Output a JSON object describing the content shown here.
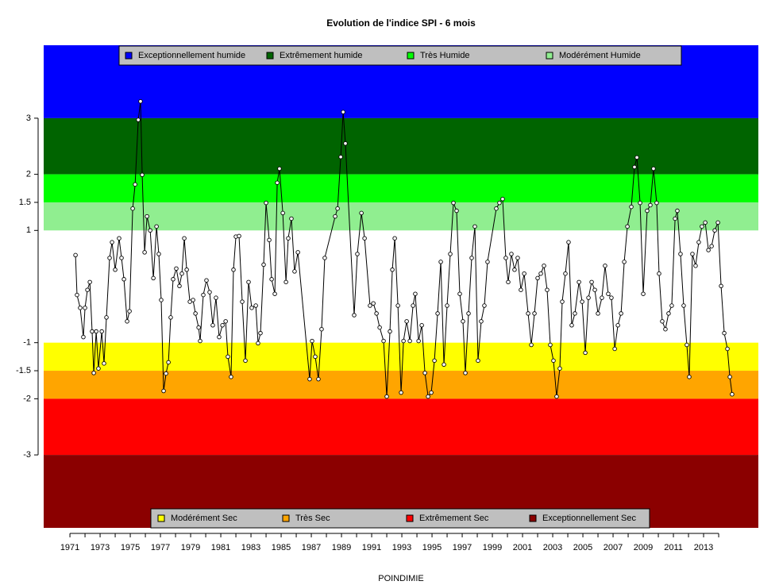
{
  "chart_data": {
    "type": "line",
    "title": "Evolution de l'indice SPI - 6 mois",
    "x_label": "POINDIMIE",
    "color": "#000000",
    "marker": "open-circle",
    "bands": [
      {
        "name": "Exceptionnellement humide",
        "color": "#0000FF",
        "range": [
          3,
          4.3
        ],
        "legend": "top"
      },
      {
        "name": "Extrêmement humide",
        "color": "#006400",
        "range": [
          2,
          3
        ],
        "legend": "top"
      },
      {
        "name": "Très Humide",
        "color": "#00FF00",
        "range": [
          1.5,
          2
        ],
        "legend": "top"
      },
      {
        "name": "Modérément Humide",
        "color": "#90EE90",
        "range": [
          1,
          1.5
        ],
        "legend": "top"
      },
      {
        "name": "Modérément Sec",
        "color": "#FFFF00",
        "range": [
          -1.5,
          -1
        ],
        "legend": "bottom"
      },
      {
        "name": "Très Sec",
        "color": "#FFA500",
        "range": [
          -2,
          -1.5
        ],
        "legend": "bottom"
      },
      {
        "name": "Extrêmement Sec",
        "color": "#FF0000",
        "range": [
          -3,
          -2
        ],
        "legend": "bottom"
      },
      {
        "name": "Exceptionnellement Sec",
        "color": "#8B0000",
        "range": [
          -4.3,
          -3
        ],
        "legend": "bottom"
      }
    ],
    "xlim": [
      1969.26,
      2016.63
    ],
    "ylim": [
      -4.3,
      4.3
    ],
    "xticks": [
      1971,
      1973,
      1975,
      1977,
      1979,
      1981,
      1983,
      1985,
      1987,
      1989,
      1991,
      1993,
      1995,
      1997,
      1999,
      2001,
      2003,
      2005,
      2007,
      2009,
      2011,
      2013
    ],
    "xminorticks": [
      1972,
      1974,
      1976,
      1978,
      1980,
      1982,
      1984,
      1986,
      1988,
      1990,
      1992,
      1994,
      1996,
      1998,
      2000,
      2002,
      2004,
      2006,
      2008,
      2010,
      2012,
      2014
    ],
    "yticks": [
      -3,
      -2,
      -1.5,
      -1,
      1,
      1.5,
      2,
      3
    ],
    "x": [
      1971.37,
      1971.47,
      1971.68,
      1971.89,
      1972.0,
      1972.16,
      1972.32,
      1972.47,
      1972.58,
      1972.74,
      1972.89,
      1973.11,
      1973.26,
      1973.42,
      1973.63,
      1973.79,
      1974.0,
      1974.26,
      1974.42,
      1974.58,
      1974.79,
      1974.95,
      1975.16,
      1975.32,
      1975.53,
      1975.68,
      1975.79,
      1975.95,
      1976.11,
      1976.32,
      1976.53,
      1976.74,
      1976.89,
      1977.05,
      1977.21,
      1977.37,
      1977.53,
      1977.68,
      1977.84,
      1978.05,
      1978.26,
      1978.42,
      1978.58,
      1978.74,
      1978.95,
      1979.16,
      1979.32,
      1979.53,
      1979.63,
      1979.84,
      1980.05,
      1980.26,
      1980.47,
      1980.68,
      1980.89,
      1981.11,
      1981.32,
      1981.47,
      1981.68,
      1981.84,
      1982.0,
      1982.21,
      1982.42,
      1982.63,
      1982.84,
      1983.05,
      1983.32,
      1983.47,
      1983.63,
      1983.84,
      1984.0,
      1984.21,
      1984.37,
      1984.58,
      1984.74,
      1984.89,
      1985.11,
      1985.32,
      1985.47,
      1985.68,
      1985.89,
      1986.11,
      1986.89,
      1987.05,
      1987.26,
      1987.47,
      1987.68,
      1987.89,
      1988.58,
      1988.74,
      1988.95,
      1989.11,
      1989.26,
      1989.84,
      1990.05,
      1990.32,
      1990.53,
      1990.89,
      1991.11,
      1991.32,
      1991.53,
      1991.79,
      1992.0,
      1992.21,
      1992.37,
      1992.53,
      1992.74,
      1992.95,
      1993.11,
      1993.32,
      1993.53,
      1993.74,
      1993.89,
      1994.11,
      1994.32,
      1994.53,
      1994.74,
      1994.95,
      1995.16,
      1995.37,
      1995.58,
      1995.79,
      1996.0,
      1996.21,
      1996.42,
      1996.63,
      1996.84,
      1997.05,
      1997.21,
      1997.42,
      1997.63,
      1997.84,
      1998.05,
      1998.26,
      1998.47,
      1998.68,
      1999.26,
      1999.47,
      1999.68,
      1999.89,
      2000.05,
      2000.26,
      2000.47,
      2000.68,
      2000.89,
      2001.11,
      2001.37,
      2001.58,
      2001.79,
      2002.0,
      2002.21,
      2002.42,
      2002.63,
      2002.84,
      2003.05,
      2003.26,
      2003.47,
      2003.63,
      2003.84,
      2004.05,
      2004.26,
      2004.47,
      2004.74,
      2004.95,
      2005.16,
      2005.37,
      2005.58,
      2005.79,
      2006.0,
      2006.26,
      2006.47,
      2006.68,
      2006.89,
      2007.11,
      2007.32,
      2007.53,
      2007.74,
      2007.95,
      2008.21,
      2008.42,
      2008.58,
      2008.79,
      2009.0,
      2009.26,
      2009.47,
      2009.68,
      2009.89,
      2010.05,
      2010.26,
      2010.47,
      2010.68,
      2010.89,
      2011.11,
      2011.26,
      2011.47,
      2011.68,
      2011.89,
      2012.05,
      2012.26,
      2012.47,
      2012.68,
      2012.89,
      2013.11,
      2013.32,
      2013.53,
      2013.74,
      2013.95,
      2014.16,
      2014.37,
      2014.58,
      2014.74,
      2014.89
    ],
    "values": [
      0.56,
      -0.15,
      -0.38,
      -0.9,
      -0.38,
      -0.06,
      0.08,
      -0.8,
      -1.54,
      -0.8,
      -1.46,
      -0.8,
      -1.37,
      -0.55,
      0.51,
      0.79,
      0.3,
      0.86,
      0.51,
      0.13,
      -0.62,
      -0.44,
      1.39,
      1.82,
      2.97,
      3.3,
      1.99,
      0.61,
      1.25,
      1.0,
      0.15,
      1.07,
      0.58,
      -0.24,
      -1.86,
      -1.55,
      -1.35,
      -0.55,
      0.13,
      0.32,
      0.01,
      0.23,
      0.86,
      0.3,
      -0.27,
      -0.24,
      -0.48,
      -0.73,
      -0.97,
      -0.15,
      0.11,
      -0.1,
      -0.69,
      -0.2,
      -0.9,
      -0.69,
      -0.62,
      -1.25,
      -1.61,
      0.3,
      0.89,
      0.9,
      -0.27,
      -1.32,
      0.08,
      -0.38,
      -0.34,
      -1.01,
      -0.83,
      0.39,
      1.49,
      0.83,
      0.13,
      -0.13,
      1.85,
      2.1,
      1.31,
      0.08,
      0.86,
      1.21,
      0.27,
      0.61,
      -1.65,
      -0.97,
      -1.25,
      -1.65,
      -0.76,
      0.51,
      1.25,
      1.39,
      2.31,
      3.11,
      2.55,
      -0.51,
      0.58,
      1.31,
      0.86,
      -0.34,
      -0.3,
      -0.48,
      -0.73,
      -0.97,
      -1.96,
      -0.8,
      0.3,
      0.86,
      -0.34,
      -1.89,
      -0.97,
      -0.62,
      -0.97,
      -0.34,
      -0.13,
      -0.97,
      -0.69,
      -1.54,
      -1.96,
      -1.89,
      -1.32,
      -0.48,
      0.44,
      -1.39,
      -0.34,
      0.58,
      1.49,
      1.35,
      -0.13,
      -0.62,
      -1.54,
      -0.48,
      0.51,
      1.07,
      -1.32,
      -0.62,
      -0.34,
      0.44,
      1.39,
      1.49,
      1.56,
      0.51,
      0.08,
      0.58,
      0.3,
      0.51,
      -0.06,
      0.23,
      -0.48,
      -1.04,
      -0.48,
      0.15,
      0.23,
      0.37,
      -0.06,
      -1.04,
      -1.32,
      -1.96,
      -1.46,
      -0.27,
      0.23,
      0.79,
      -0.69,
      -0.48,
      0.08,
      -0.27,
      -1.18,
      -0.2,
      0.08,
      -0.06,
      -0.48,
      -0.2,
      0.37,
      -0.13,
      -0.2,
      -1.11,
      -0.69,
      -0.48,
      0.44,
      1.07,
      1.42,
      2.13,
      2.3,
      1.49,
      -0.13,
      1.35,
      1.45,
      2.1,
      1.49,
      0.23,
      -0.62,
      -0.76,
      -0.48,
      -0.34,
      1.21,
      1.35,
      0.58,
      -0.34,
      -1.04,
      -1.61,
      0.58,
      0.37,
      0.79,
      1.07,
      1.14,
      0.65,
      0.72,
      1.0,
      1.14,
      0.01,
      -0.83,
      -1.11,
      -1.61,
      -1.92
    ]
  }
}
